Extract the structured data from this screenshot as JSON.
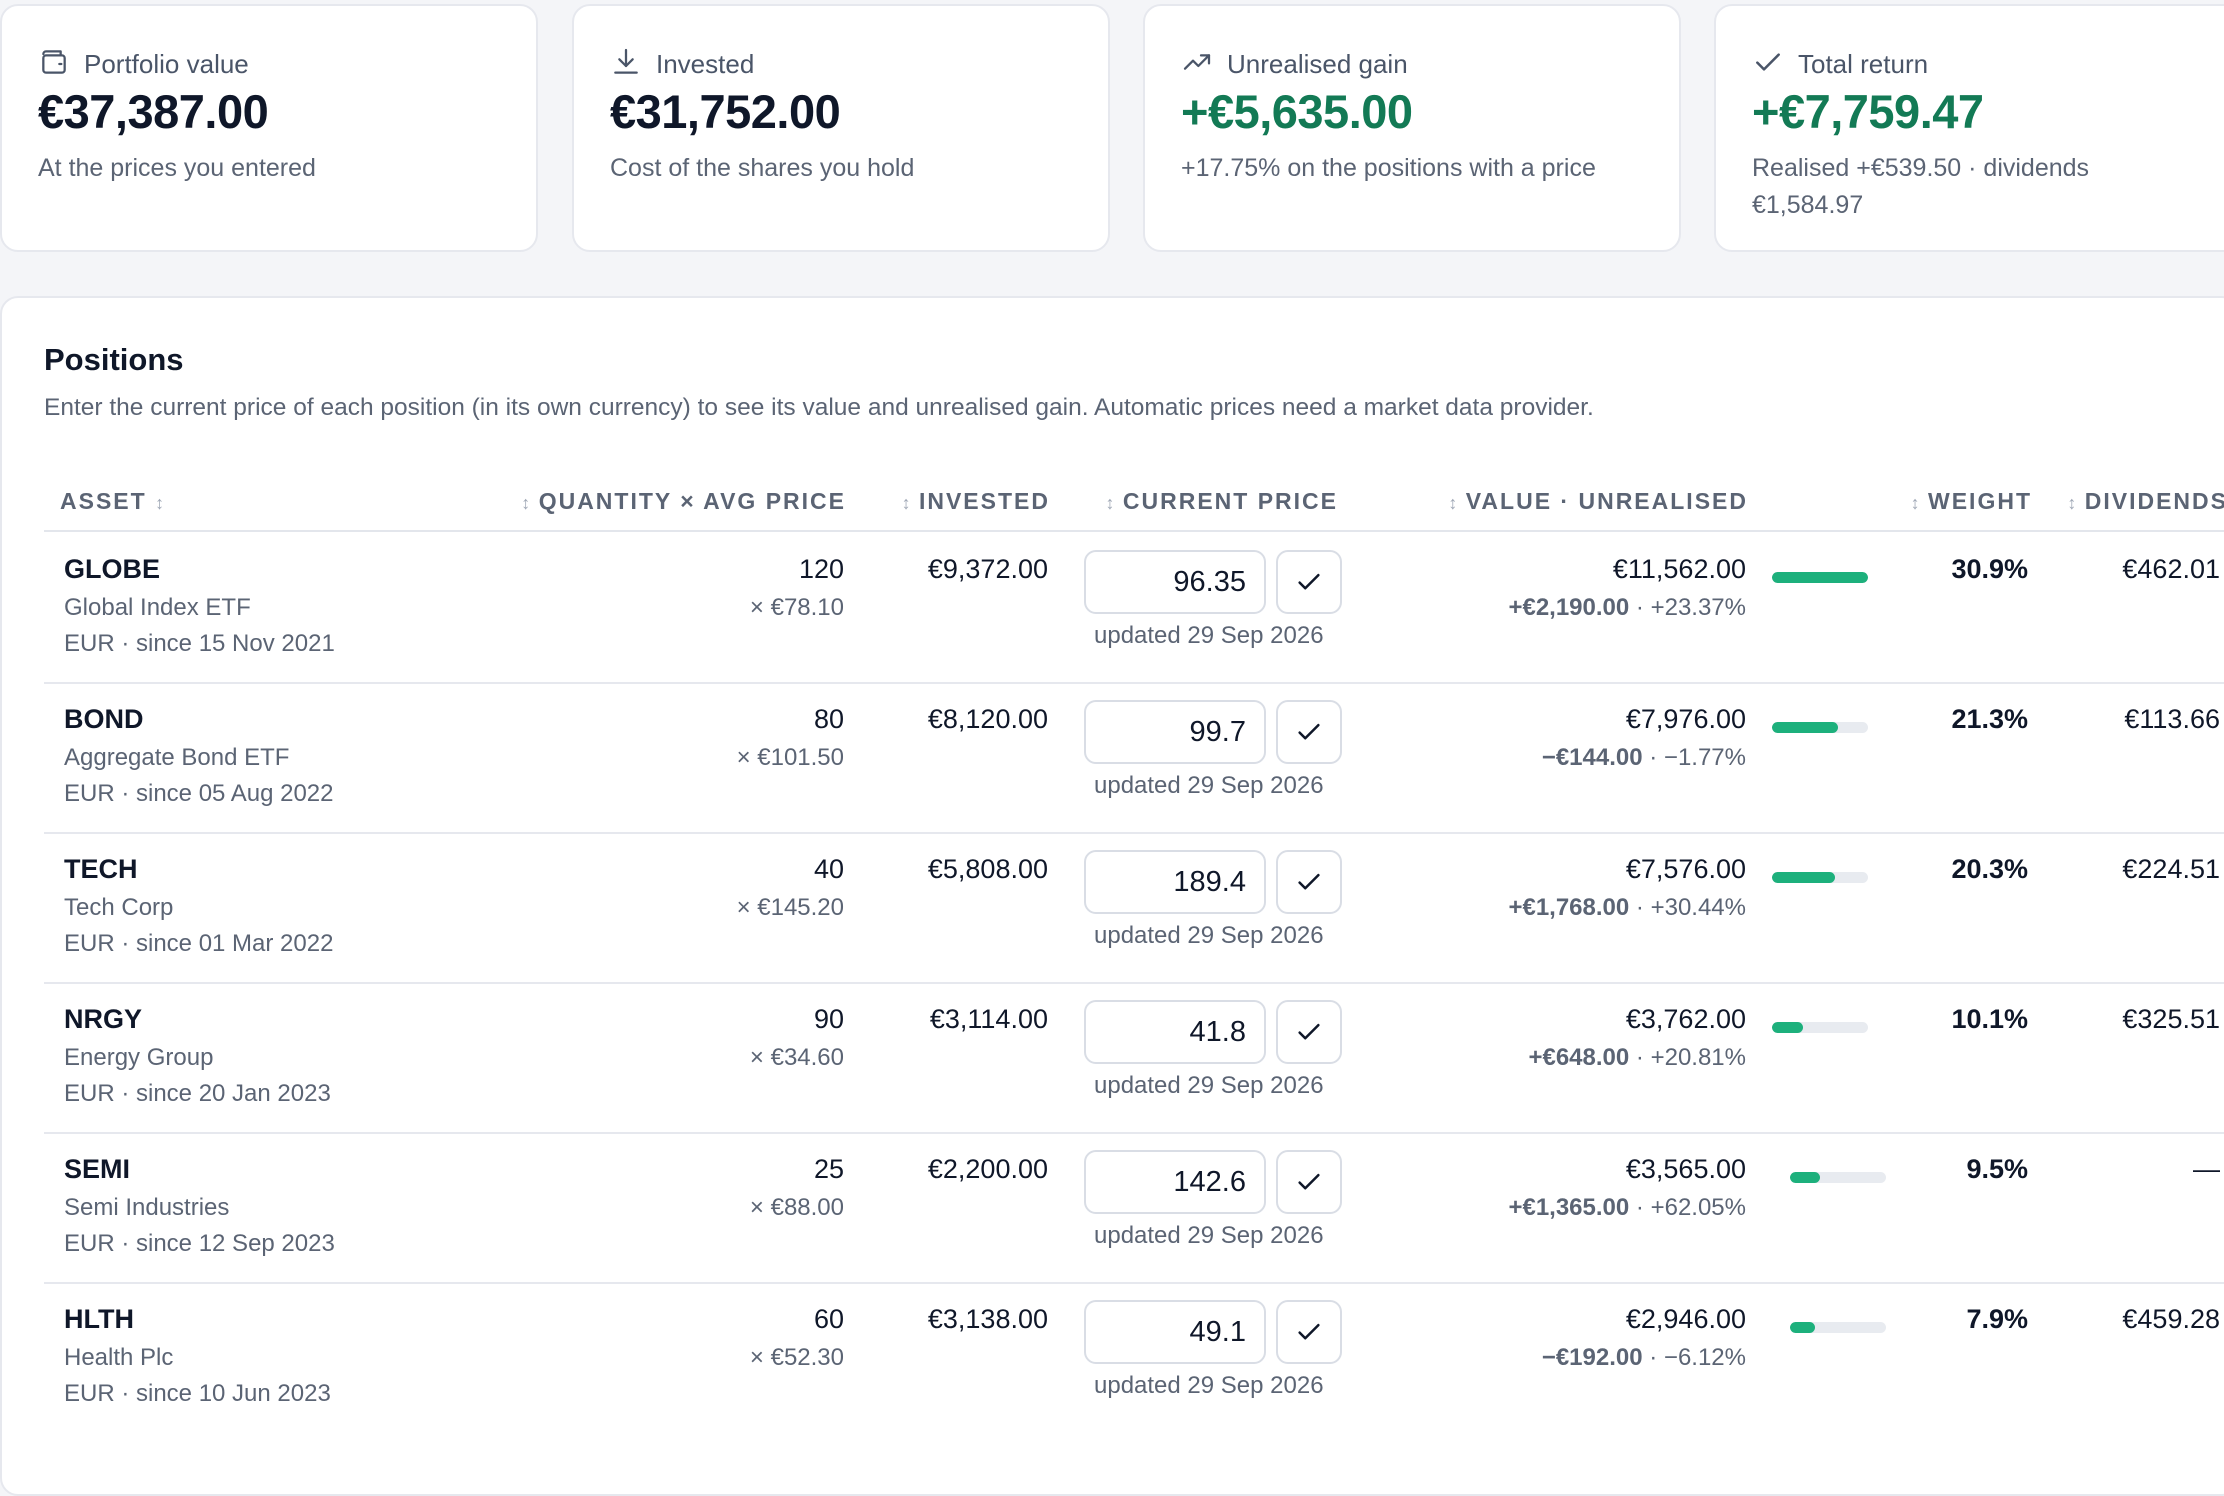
{
  "cards": [
    {
      "icon": "wallet-icon",
      "label": "Portfolio value",
      "value": "€37,387.00",
      "sub": "At the prices you entered",
      "green": false
    },
    {
      "icon": "download-icon",
      "label": "Invested",
      "value": "€31,752.00",
      "sub": "Cost of the shares you hold",
      "green": false
    },
    {
      "icon": "trending-up-icon",
      "label": "Unrealised gain",
      "value": "+€5,635.00",
      "sub": "+17.75% on the positions with a price",
      "green": true
    },
    {
      "icon": "check-icon",
      "label": "Total return",
      "value": "+€7,759.47",
      "sub": "Realised +€539.50 · dividends €1,584.97",
      "green": true
    }
  ],
  "positions": {
    "title": "Positions",
    "description": "Enter the current price of each position (in its own currency) to see its value and unrealised gain. Automatic prices need a market data provider.",
    "headers": {
      "asset": "ASSET",
      "quantity": "QUANTITY × AVG PRICE",
      "invested": "INVESTED",
      "current_price": "CURRENT PRICE",
      "value": "VALUE · UNREALISED",
      "weight": "WEIGHT",
      "dividends": "DIVIDENDS"
    },
    "sort_glyph": "↕",
    "bar_color": "#1db07c",
    "rows": [
      {
        "symbol": "GLOBE",
        "name": "Global Index ETF",
        "meta": "EUR · since 15 Nov 2021",
        "qty": "120",
        "avg": "× €78.10",
        "invested": "€9,372.00",
        "price": "96.35",
        "updated": "updated 29 Sep 2026",
        "value": "€11,562.00",
        "gain": "+€2,190.00",
        "gain_pct": " · +23.37%",
        "weight": "30.9%",
        "weight_frac": 0.309,
        "dividends": "€462.01"
      },
      {
        "symbol": "BOND",
        "name": "Aggregate Bond ETF",
        "meta": "EUR · since 05 Aug 2022",
        "qty": "80",
        "avg": "× €101.50",
        "invested": "€8,120.00",
        "price": "99.7",
        "updated": "updated 29 Sep 2026",
        "value": "€7,976.00",
        "gain": "−€144.00",
        "gain_pct": " · −1.77%",
        "weight": "21.3%",
        "weight_frac": 0.213,
        "dividends": "€113.66"
      },
      {
        "symbol": "TECH",
        "name": "Tech Corp",
        "meta": "EUR · since 01 Mar 2022",
        "qty": "40",
        "avg": "× €145.20",
        "invested": "€5,808.00",
        "price": "189.4",
        "updated": "updated 29 Sep 2026",
        "value": "€7,576.00",
        "gain": "+€1,768.00",
        "gain_pct": " · +30.44%",
        "weight": "20.3%",
        "weight_frac": 0.203,
        "dividends": "€224.51"
      },
      {
        "symbol": "NRGY",
        "name": "Energy Group",
        "meta": "EUR · since 20 Jan 2023",
        "qty": "90",
        "avg": "× €34.60",
        "invested": "€3,114.00",
        "price": "41.8",
        "updated": "updated 29 Sep 2026",
        "value": "€3,762.00",
        "gain": "+€648.00",
        "gain_pct": " · +20.81%",
        "weight": "10.1%",
        "weight_frac": 0.101,
        "dividends": "€325.51"
      },
      {
        "symbol": "SEMI",
        "name": "Semi Industries",
        "meta": "EUR · since 12 Sep 2023",
        "qty": "25",
        "avg": "× €88.00",
        "invested": "€2,200.00",
        "price": "142.6",
        "updated": "updated 29 Sep 2026",
        "value": "€3,565.00",
        "gain": "+€1,365.00",
        "gain_pct": " · +62.05%",
        "weight": "9.5%",
        "weight_frac": 0.095,
        "dividends": "—"
      },
      {
        "symbol": "HLTH",
        "name": "Health Plc",
        "meta": "EUR · since 10 Jun 2023",
        "qty": "60",
        "avg": "× €52.30",
        "invested": "€3,138.00",
        "price": "49.1",
        "updated": "updated 29 Sep 2026",
        "value": "€2,946.00",
        "gain": "−€192.00",
        "gain_pct": " · −6.12%",
        "weight": "7.9%",
        "weight_frac": 0.079,
        "dividends": "€459.28"
      }
    ]
  }
}
